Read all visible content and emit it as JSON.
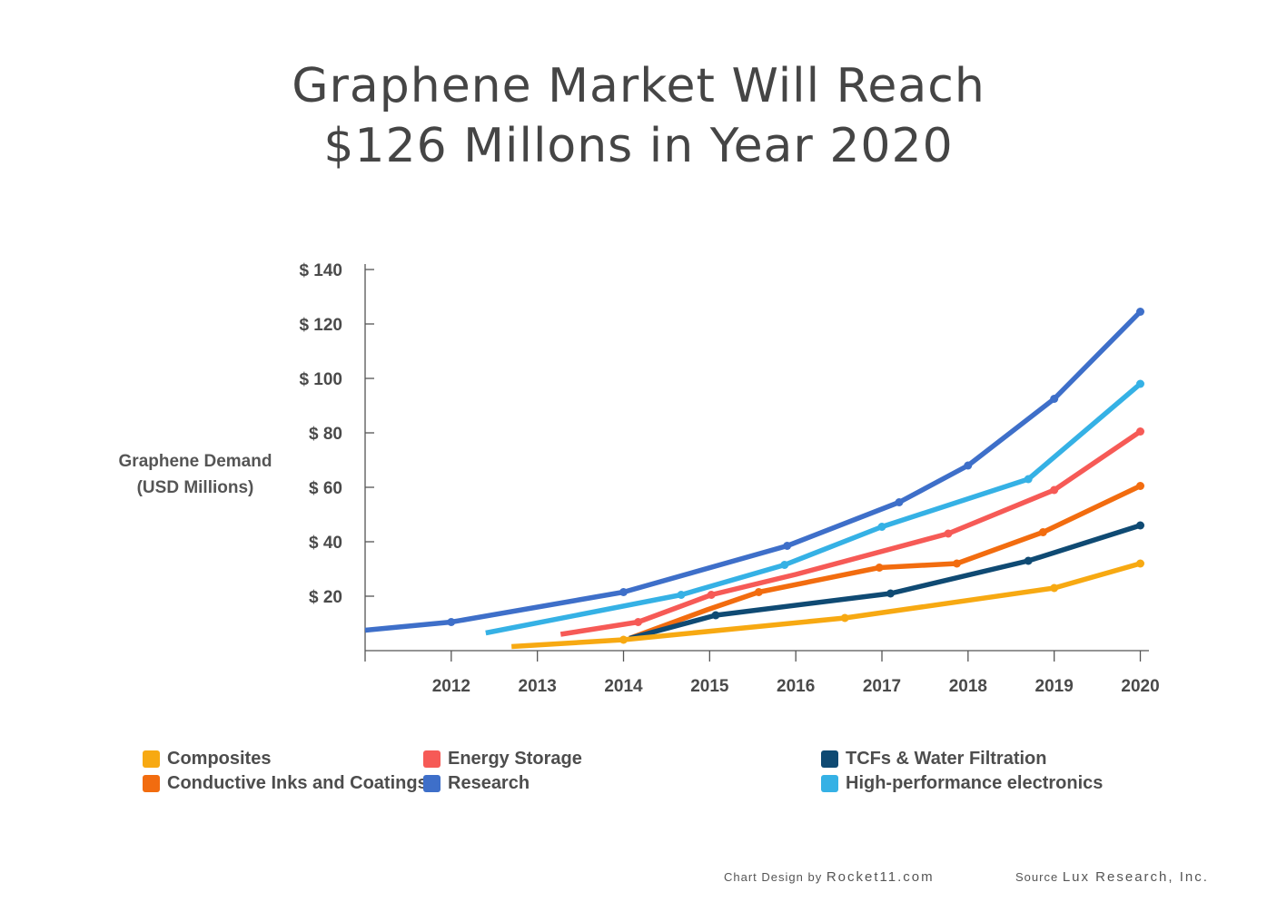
{
  "title": {
    "line1": "Graphene Market Will Reach",
    "line2": "$126 Millons in Year 2020"
  },
  "y_axis_label": {
    "line1": "Graphene Demand",
    "line2": "(USD Millions)"
  },
  "footer": {
    "design_label": "Chart Design by",
    "design_name": "Rocket11.com",
    "source_label": "Source",
    "source_name": "Lux Research, Inc."
  },
  "chart_data": {
    "type": "line",
    "title": "Graphene Market Will Reach $126 Millons in Year 2020",
    "ylabel": "Graphene Demand (USD Millions)",
    "xlabel": "",
    "xlim": [
      2011,
      2020.1
    ],
    "ylim": [
      0,
      140
    ],
    "x_ticks": [
      {
        "value": 2012,
        "label": "2012"
      },
      {
        "value": 2013,
        "label": "2013"
      },
      {
        "value": 2014,
        "label": "2014"
      },
      {
        "value": 2015,
        "label": "2015"
      },
      {
        "value": 2016,
        "label": "2016"
      },
      {
        "value": 2017,
        "label": "2017"
      },
      {
        "value": 2018,
        "label": "2018"
      },
      {
        "value": 2019,
        "label": "2019"
      },
      {
        "value": 2020,
        "label": "2020"
      }
    ],
    "y_ticks": [
      {
        "value": 20,
        "label": "$ 20"
      },
      {
        "value": 40,
        "label": "$ 40"
      },
      {
        "value": 60,
        "label": "$ 60"
      },
      {
        "value": 80,
        "label": "$ 80"
      },
      {
        "value": 100,
        "label": "$ 100"
      },
      {
        "value": 120,
        "label": "$ 120"
      },
      {
        "value": 140,
        "label": "$ 140"
      }
    ],
    "grid": false,
    "legend_position": "bottom",
    "series": [
      {
        "name": "Composites",
        "color": "#f7a912",
        "points": [
          [
            2012.7,
            1.5
          ],
          [
            2014.0,
            4
          ],
          [
            2016.57,
            12
          ],
          [
            2019.0,
            23
          ],
          [
            2020.0,
            32
          ]
        ],
        "markers": [
          [
            2014.0,
            4
          ],
          [
            2016.57,
            12
          ],
          [
            2019.0,
            23
          ],
          [
            2020.0,
            32
          ]
        ]
      },
      {
        "name": "Conductive Inks and Coatings",
        "color": "#f26c0f",
        "points": [
          [
            2014.07,
            4.5
          ],
          [
            2014.97,
            15
          ],
          [
            2015.57,
            21.5
          ],
          [
            2016.97,
            30.5
          ],
          [
            2017.87,
            32
          ],
          [
            2018.87,
            43.5
          ],
          [
            2020.0,
            60.5
          ]
        ],
        "markers": [
          [
            2015.57,
            21.5
          ],
          [
            2016.97,
            30.5
          ],
          [
            2017.87,
            32
          ],
          [
            2018.87,
            43.5
          ],
          [
            2020.0,
            60.5
          ]
        ]
      },
      {
        "name": "Energy Storage",
        "color": "#f65a56",
        "points": [
          [
            2013.27,
            6
          ],
          [
            2014.17,
            10.5
          ],
          [
            2015.02,
            20.5
          ],
          [
            2016.0,
            28
          ],
          [
            2017.77,
            43
          ],
          [
            2019.0,
            59
          ],
          [
            2020.0,
            80.5
          ]
        ],
        "markers": [
          [
            2014.17,
            10.5
          ],
          [
            2015.02,
            20.5
          ],
          [
            2017.77,
            43
          ],
          [
            2019.0,
            59
          ],
          [
            2020.0,
            80.5
          ]
        ]
      },
      {
        "name": "Research",
        "color": "#3e6fc9",
        "points": [
          [
            2011.0,
            7.5
          ],
          [
            2012.0,
            10.5
          ],
          [
            2014.0,
            21.5
          ],
          [
            2015.9,
            38.5
          ],
          [
            2017.2,
            54.5
          ],
          [
            2018.0,
            68
          ],
          [
            2019.0,
            92.5
          ],
          [
            2020.0,
            124.5
          ]
        ],
        "markers": [
          [
            2012.0,
            10.5
          ],
          [
            2014.0,
            21.5
          ],
          [
            2015.9,
            38.5
          ],
          [
            2017.2,
            54.5
          ],
          [
            2018.0,
            68
          ],
          [
            2019.0,
            92.5
          ],
          [
            2020.0,
            124.5
          ]
        ]
      },
      {
        "name": "TCFs & Water Filtration",
        "color": "#0f4a73",
        "points": [
          [
            2014.07,
            4.5
          ],
          [
            2015.07,
            13
          ],
          [
            2017.1,
            21
          ],
          [
            2018.7,
            33
          ],
          [
            2020.0,
            46
          ]
        ],
        "markers": [
          [
            2015.07,
            13
          ],
          [
            2017.1,
            21
          ],
          [
            2018.7,
            33
          ],
          [
            2020.0,
            46
          ]
        ]
      },
      {
        "name": "High-performance electronics",
        "color": "#35b1e5",
        "points": [
          [
            2012.4,
            6.5
          ],
          [
            2014.67,
            20.5
          ],
          [
            2015.87,
            31.5
          ],
          [
            2017.0,
            45.5
          ],
          [
            2018.7,
            63
          ],
          [
            2020.0,
            98
          ]
        ],
        "markers": [
          [
            2014.67,
            20.5
          ],
          [
            2015.87,
            31.5
          ],
          [
            2017.0,
            45.5
          ],
          [
            2018.7,
            63
          ],
          [
            2020.0,
            98
          ]
        ]
      }
    ],
    "draw_order": [
      3,
      5,
      2,
      1,
      4,
      0
    ],
    "legend_order": [
      0,
      1,
      2,
      3,
      4,
      5
    ]
  }
}
